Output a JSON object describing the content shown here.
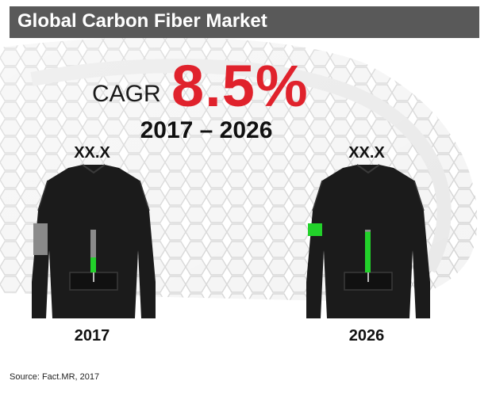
{
  "title": "Global Carbon Fiber Market",
  "cagr": {
    "label": "CAGR",
    "value": "8.5%",
    "period": "2017 – 2026"
  },
  "chart_data": {
    "type": "bar",
    "categories": [
      "2017",
      "2026"
    ],
    "value_labels": [
      "XX.X",
      "XX.X"
    ],
    "relative_fill": [
      0.35,
      0.95
    ],
    "colors": {
      "track": "#8a8a8a",
      "fill": "#22d12a",
      "accent": "#e0222c"
    }
  },
  "source": "Source: Fact.MR, 2017"
}
